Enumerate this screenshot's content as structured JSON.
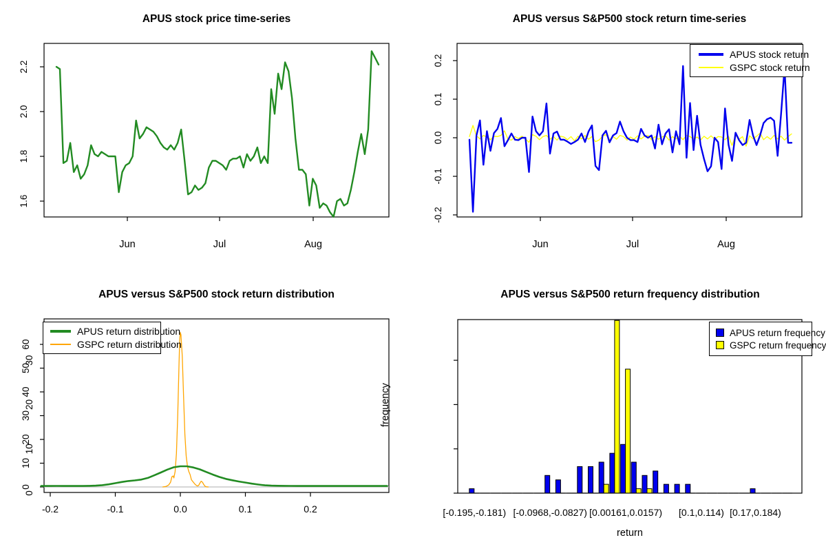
{
  "colors": {
    "apus_green": "#228B22",
    "apus_blue": "#0000EE",
    "gspc_yellow": "#FFFF00",
    "gspc_orange": "#FFA500",
    "zero_line_gray": "#BEBEBE",
    "axis_black": "#000000"
  },
  "chart_data": [
    {
      "type": "line",
      "title": "APUS stock price time-series",
      "x_tick_labels": [
        "Jun",
        "Jul",
        "Aug"
      ],
      "y_tick_labels": [
        "1.6",
        "1.8",
        "2.0",
        "2.2"
      ],
      "ylim": [
        1.52,
        2.29
      ],
      "grid": false,
      "series": [
        {
          "name": "APUS stock price",
          "color": "#228B22",
          "width": 2.4,
          "values": [
            2.2,
            2.19,
            1.77,
            1.78,
            1.86,
            1.73,
            1.76,
            1.7,
            1.72,
            1.76,
            1.85,
            1.81,
            1.8,
            1.82,
            1.81,
            1.8,
            1.8,
            1.8,
            1.64,
            1.73,
            1.76,
            1.77,
            1.8,
            1.96,
            1.88,
            1.9,
            1.93,
            1.92,
            1.91,
            1.89,
            1.86,
            1.84,
            1.83,
            1.85,
            1.83,
            1.86,
            1.92,
            1.78,
            1.63,
            1.64,
            1.67,
            1.65,
            1.66,
            1.68,
            1.75,
            1.78,
            1.78,
            1.77,
            1.76,
            1.74,
            1.78,
            1.79,
            1.79,
            1.8,
            1.75,
            1.81,
            1.78,
            1.8,
            1.84,
            1.77,
            1.8,
            1.77,
            2.1,
            1.99,
            2.17,
            2.1,
            2.22,
            2.18,
            2.06,
            1.88,
            1.74,
            1.74,
            1.72,
            1.58,
            1.7,
            1.67,
            1.57,
            1.59,
            1.58,
            1.55,
            1.53,
            1.6,
            1.61,
            1.58,
            1.59,
            1.65,
            1.73,
            1.82,
            1.9,
            1.81,
            1.92,
            2.27,
            2.24,
            2.21
          ]
        }
      ]
    },
    {
      "type": "line",
      "title": "APUS versus S&P500 stock return time-series",
      "x_tick_labels": [
        "Jun",
        "Jul",
        "Aug"
      ],
      "y_tick_labels": [
        "-0.2",
        "-0.1",
        "0.0",
        "0.1",
        "0.2"
      ],
      "ylim": [
        -0.21,
        0.21
      ],
      "legend_position": "topright",
      "series": [
        {
          "name": "APUS stock return",
          "color": "#0000EE",
          "width": 2.4,
          "values": [
            -0.005,
            -0.192,
            0.006,
            0.045,
            -0.07,
            0.017,
            -0.034,
            0.012,
            0.023,
            0.051,
            -0.022,
            -0.006,
            0.011,
            -0.005,
            -0.006,
            0.0,
            0.0,
            -0.089,
            0.055,
            0.017,
            0.006,
            0.017,
            0.089,
            -0.041,
            0.011,
            0.016,
            -0.005,
            -0.005,
            -0.01,
            -0.016,
            -0.011,
            -0.005,
            0.011,
            -0.011,
            0.016,
            0.032,
            -0.073,
            -0.084,
            0.006,
            0.018,
            -0.012,
            0.006,
            0.012,
            0.042,
            0.017,
            0.0,
            -0.006,
            -0.006,
            -0.011,
            0.023,
            0.006,
            0.0,
            0.006,
            -0.028,
            0.034,
            -0.017,
            0.011,
            0.022,
            -0.038,
            0.017,
            -0.017,
            0.186,
            -0.052,
            0.09,
            -0.032,
            0.057,
            -0.018,
            -0.055,
            -0.087,
            -0.074,
            0.0,
            -0.011,
            -0.081,
            0.076,
            -0.018,
            -0.06,
            0.013,
            -0.006,
            -0.019,
            -0.013,
            0.046,
            0.006,
            -0.019,
            0.006,
            0.038,
            0.048,
            0.052,
            0.044,
            -0.047,
            0.061,
            0.182,
            -0.013,
            -0.013
          ]
        },
        {
          "name": "GSPC stock return",
          "color": "#FFFF00",
          "width": 1.3,
          "values": [
            0.003,
            0.032,
            0.005,
            -0.003,
            0.006,
            0.002,
            -0.005,
            0.004,
            0.003,
            0.006,
            0.018,
            -0.004,
            -0.006,
            0.003,
            -0.002,
            0.004,
            -0.003,
            -0.012,
            0.008,
            0.004,
            -0.005,
            0.003,
            0.006,
            -0.004,
            0.003,
            -0.006,
            0.004,
            0.002,
            -0.005,
            0.003,
            -0.008,
            0.004,
            -0.003,
            0.006,
            -0.004,
            0.003,
            -0.01,
            -0.006,
            0.004,
            0.008,
            -0.005,
            0.003,
            -0.004,
            0.006,
            0.003,
            -0.006,
            0.002,
            -0.004,
            0.005,
            -0.003,
            0.004,
            0.006,
            -0.005,
            0.003,
            -0.004,
            0.002,
            0.005,
            -0.006,
            0.003,
            -0.003,
            0.004,
            -0.005,
            0.006,
            0.003,
            -0.004,
            0.002,
            -0.006,
            0.004,
            -0.003,
            0.005,
            -0.004,
            0.003,
            0.002,
            -0.005,
            0.004,
            -0.02,
            0.006,
            -0.004,
            0.003,
            -0.022,
            0.005,
            -0.003,
            0.004,
            0.012,
            -0.005,
            0.003,
            -0.004,
            0.006,
            -0.003,
            0.004,
            -0.006,
            0.003,
            0.01
          ]
        }
      ]
    },
    {
      "type": "line",
      "title": "APUS versus S&P500 stock return distribution",
      "x_tick_labels": [
        "-0.2",
        "-0.1",
        "0.0",
        "0.1",
        "0.2"
      ],
      "y_tick_labels": [
        "0",
        "10",
        "20",
        "30",
        "40",
        "50",
        "60"
      ],
      "ylim": [
        0,
        67
      ],
      "legend_position": "topleft",
      "zero_baseline": true,
      "series": [
        {
          "name": "APUS return distribution",
          "color": "#228B22",
          "width": 2.6,
          "points": [
            [
              -0.214,
              0.4
            ],
            [
              -0.2,
              0.42
            ],
            [
              -0.19,
              0.43
            ],
            [
              -0.18,
              0.42
            ],
            [
              -0.17,
              0.4
            ],
            [
              -0.16,
              0.4
            ],
            [
              -0.15,
              0.42
            ],
            [
              -0.14,
              0.46
            ],
            [
              -0.13,
              0.55
            ],
            [
              -0.12,
              0.75
            ],
            [
              -0.11,
              1.1
            ],
            [
              -0.1,
              1.6
            ],
            [
              -0.09,
              2.1
            ],
            [
              -0.08,
              2.5
            ],
            [
              -0.07,
              2.75
            ],
            [
              -0.06,
              3.1
            ],
            [
              -0.05,
              3.8
            ],
            [
              -0.04,
              4.9
            ],
            [
              -0.03,
              6.1
            ],
            [
              -0.02,
              7.3
            ],
            [
              -0.01,
              8.3
            ],
            [
              0.0,
              8.7
            ],
            [
              0.01,
              8.7
            ],
            [
              0.02,
              8.2
            ],
            [
              0.03,
              7.4
            ],
            [
              0.04,
              6.3
            ],
            [
              0.05,
              5.2
            ],
            [
              0.06,
              4.2
            ],
            [
              0.07,
              3.4
            ],
            [
              0.08,
              2.8
            ],
            [
              0.09,
              2.3
            ],
            [
              0.1,
              1.85
            ],
            [
              0.11,
              1.4
            ],
            [
              0.12,
              1.0
            ],
            [
              0.13,
              0.7
            ],
            [
              0.14,
              0.55
            ],
            [
              0.15,
              0.5
            ],
            [
              0.16,
              0.46
            ],
            [
              0.17,
              0.43
            ],
            [
              0.18,
              0.42
            ],
            [
              0.2,
              0.42
            ],
            [
              0.22,
              0.41
            ],
            [
              0.24,
              0.4
            ],
            [
              0.27,
              0.4
            ],
            [
              0.3,
              0.4
            ],
            [
              0.318,
              0.4
            ]
          ]
        },
        {
          "name": "GSPC return distribution",
          "color": "#FFA500",
          "width": 1.3,
          "points": [
            [
              -0.027,
              0
            ],
            [
              -0.022,
              0.2
            ],
            [
              -0.018,
              0.8
            ],
            [
              -0.015,
              2.0
            ],
            [
              -0.013,
              4.3
            ],
            [
              -0.011,
              4.6
            ],
            [
              -0.01,
              3.8
            ],
            [
              -0.008,
              6.5
            ],
            [
              -0.006,
              14
            ],
            [
              -0.004,
              30
            ],
            [
              -0.002,
              52
            ],
            [
              -0.001,
              62
            ],
            [
              0.0,
              65
            ],
            [
              0.001,
              64
            ],
            [
              0.003,
              55
            ],
            [
              0.005,
              38
            ],
            [
              0.007,
              22
            ],
            [
              0.009,
              13
            ],
            [
              0.011,
              8.5
            ],
            [
              0.013,
              6.5
            ],
            [
              0.015,
              5.2
            ],
            [
              0.017,
              3.0
            ],
            [
              0.02,
              2.0
            ],
            [
              0.023,
              1.0
            ],
            [
              0.026,
              0.4
            ],
            [
              0.028,
              0.6
            ],
            [
              0.03,
              1.6
            ],
            [
              0.032,
              2.4
            ],
            [
              0.034,
              2.0
            ],
            [
              0.036,
              1.0
            ],
            [
              0.038,
              0.3
            ],
            [
              0.04,
              0.05
            ],
            [
              0.043,
              0
            ]
          ]
        }
      ]
    },
    {
      "type": "bar",
      "title": "APUS versus S&P500 return frequency distribution",
      "xlabel": "return",
      "ylabel": "frequency",
      "y_tick_labels": [
        "0",
        "10",
        "20",
        "30"
      ],
      "ylim": [
        0,
        39
      ],
      "n_bins": 30,
      "bin_labels": [
        {
          "label": "[-0.195,-0.181)",
          "bin": 1
        },
        {
          "label": "[-0.0968,-0.0827)",
          "bin": 8
        },
        {
          "label": "[0.00161,0.0157)",
          "bin": 15
        },
        {
          "label": "[0.1,0.114)",
          "bin": 22
        },
        {
          "label": "[0.17,0.184)",
          "bin": 27
        }
      ],
      "series": [
        {
          "name": "APUS return frequency",
          "color": "#0000EE",
          "counts": [
            1,
            0,
            0,
            0,
            0,
            0,
            0,
            4,
            3,
            0,
            6,
            6,
            7,
            9,
            11,
            7,
            4,
            5,
            2,
            2,
            2,
            0,
            0,
            0,
            0,
            0,
            1,
            0,
            0,
            0
          ]
        },
        {
          "name": "GSPC return frequency",
          "color": "#FFFF00",
          "counts": [
            0,
            0,
            0,
            0,
            0,
            0,
            0,
            0,
            0,
            0,
            0,
            0,
            2,
            39,
            28,
            1,
            1,
            0,
            0,
            0,
            0,
            0,
            0,
            0,
            0,
            0,
            0,
            0,
            0,
            0
          ]
        }
      ]
    }
  ]
}
